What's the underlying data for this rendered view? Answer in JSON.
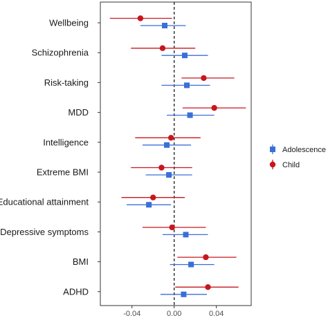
{
  "chart_data": {
    "type": "scatter",
    "title": "",
    "xlabel": "",
    "ylabel": "",
    "categories": [
      "Wellbeing",
      "Schizophrenia",
      "Risk-taking",
      "MDD",
      "Intelligence",
      "Extreme BMI",
      "Educational attainment",
      "Depressive symptoms",
      "BMI",
      "ADHD"
    ],
    "xlim": [
      -0.07,
      0.073
    ],
    "x_ticks": [
      -0.04,
      0.0,
      0.04
    ],
    "x_tick_labels": [
      "-0.04",
      "0.00",
      "0.04"
    ],
    "reference_line_x": 0,
    "grid": false,
    "legend_position": "right",
    "series": [
      {
        "name": "Adolescence",
        "color": "#3a6fd8",
        "marker": "square",
        "values": [
          -0.009,
          0.01,
          0.012,
          0.015,
          -0.007,
          -0.005,
          -0.024,
          0.011,
          0.016,
          0.009
        ],
        "ci_low": [
          -0.032,
          -0.012,
          -0.012,
          -0.007,
          -0.03,
          -0.027,
          -0.045,
          -0.011,
          -0.004,
          -0.013
        ],
        "ci_high": [
          0.011,
          0.032,
          0.034,
          0.038,
          0.016,
          0.017,
          -0.003,
          0.032,
          0.038,
          0.031
        ]
      },
      {
        "name": "Child",
        "color": "#c8161d",
        "marker": "circle",
        "values": [
          -0.032,
          -0.011,
          0.028,
          0.038,
          -0.003,
          -0.012,
          -0.02,
          -0.002,
          0.03,
          0.032
        ],
        "ci_low": [
          -0.061,
          -0.041,
          0.007,
          0.008,
          -0.037,
          -0.041,
          -0.05,
          -0.03,
          0.003,
          0.001
        ],
        "ci_high": [
          -0.002,
          0.02,
          0.057,
          0.068,
          0.025,
          0.017,
          0.01,
          0.03,
          0.059,
          0.061
        ]
      }
    ]
  }
}
